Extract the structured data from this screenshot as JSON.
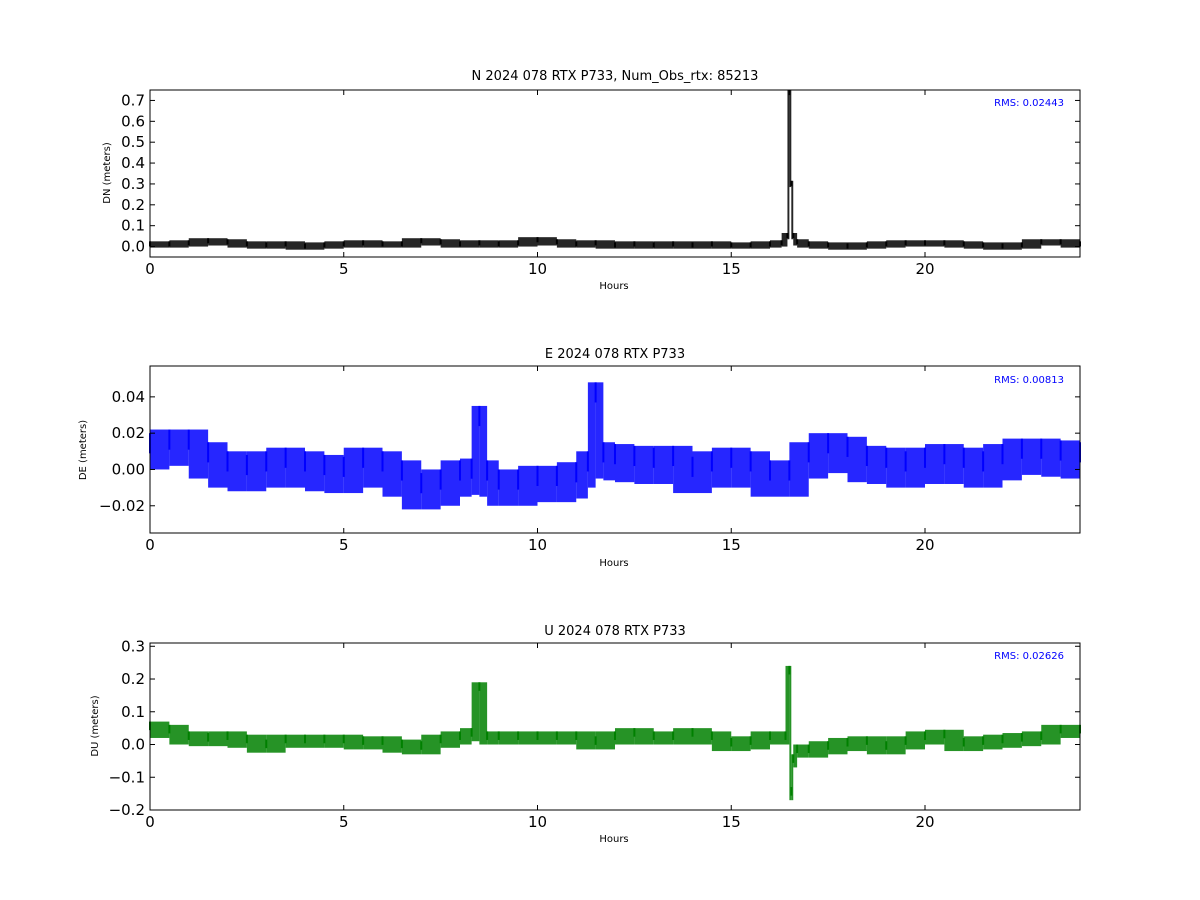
{
  "figure": {
    "background": "#ffffff"
  },
  "chart_data": [
    {
      "type": "scatter",
      "title": "N 2024 078 RTX  P733, Num_Obs_rtx: 85213",
      "xlabel": "Hours",
      "ylabel": "DN (meters)",
      "xlim": [
        0,
        24
      ],
      "ylim": [
        -0.05,
        0.75
      ],
      "xticks": [
        0,
        5,
        10,
        15,
        20
      ],
      "xtick_labels": [
        "0",
        "5",
        "10",
        "15",
        "20"
      ],
      "yticks": [
        0.0,
        0.1,
        0.2,
        0.3,
        0.4,
        0.5,
        0.6,
        0.7
      ],
      "ytick_labels": [
        "0.0",
        "0.1",
        "0.2",
        "0.3",
        "0.4",
        "0.5",
        "0.6",
        "0.7"
      ],
      "annotation": "RMS:  0.02443",
      "color": "#000000",
      "annotation_color": "#0000ff",
      "series": [
        {
          "x": [
            0,
            0.5,
            1,
            1.5,
            2,
            2.5,
            3,
            3.5,
            4,
            4.5,
            5,
            5.5,
            6,
            6.5,
            7,
            7.5,
            8,
            8.5,
            9,
            9.5,
            10,
            10.5,
            11,
            11.5,
            12,
            12.5,
            13,
            13.5,
            14,
            14.5,
            15,
            15.5,
            16,
            16.3,
            16.45,
            16.5,
            16.55,
            16.6,
            16.7,
            17,
            17.5,
            18,
            18.5,
            19,
            19.5,
            20,
            20.5,
            21,
            21.5,
            22,
            22.5,
            23,
            23.5,
            24
          ],
          "y": [
            0.01,
            0.01,
            0.015,
            0.025,
            0.02,
            0.01,
            0.005,
            0.01,
            0.0,
            0.005,
            0.01,
            0.015,
            0.01,
            0.01,
            0.025,
            0.02,
            0.01,
            0.015,
            0.01,
            0.015,
            0.03,
            0.02,
            0.01,
            0.015,
            0.005,
            0.01,
            0.005,
            0.01,
            0.005,
            0.01,
            0.005,
            0.005,
            0.01,
            0.015,
            0.05,
            0.74,
            0.3,
            0.05,
            0.02,
            0.01,
            0.005,
            0.0,
            0.005,
            0.01,
            0.015,
            0.015,
            0.015,
            0.01,
            0.005,
            0.0,
            0.005,
            0.02,
            0.02,
            0.01
          ],
          "spread": 0.015
        }
      ]
    },
    {
      "type": "scatter",
      "title": "E 2024 078 RTX  P733",
      "xlabel": "Hours",
      "ylabel": "DE (meters)",
      "xlim": [
        0,
        24
      ],
      "ylim": [
        -0.035,
        0.057
      ],
      "xticks": [
        0,
        5,
        10,
        15,
        20
      ],
      "xtick_labels": [
        "0",
        "5",
        "10",
        "15",
        "20"
      ],
      "yticks": [
        -0.02,
        0.0,
        0.02,
        0.04
      ],
      "ytick_labels": [
        "−0.02",
        "0.00",
        "0.02",
        "0.04"
      ],
      "annotation": "RMS:  0.00813",
      "color": "#0000ff",
      "annotation_color": "#0000ff",
      "series": [
        {
          "x": [
            0,
            0.5,
            1,
            1.5,
            2,
            2.5,
            3,
            3.5,
            4,
            4.5,
            5,
            5.5,
            6,
            6.5,
            7,
            7.5,
            8,
            8.3,
            8.5,
            8.7,
            9,
            9.5,
            10,
            10.5,
            11,
            11.3,
            11.5,
            11.7,
            12,
            12.5,
            13,
            13.5,
            14,
            14.5,
            15,
            15.5,
            16,
            16.5,
            17,
            17.5,
            18,
            18.5,
            19,
            19.5,
            20,
            20.5,
            21,
            21.5,
            22,
            22.5,
            23,
            23.5,
            24
          ],
          "y": [
            0.01,
            0.012,
            0.012,
            0.005,
            0.0,
            -0.002,
            0.0,
            0.002,
            0.0,
            -0.002,
            -0.003,
            0.002,
            0.0,
            -0.005,
            -0.012,
            -0.01,
            -0.005,
            -0.004,
            0.025,
            -0.005,
            -0.01,
            -0.01,
            -0.008,
            -0.008,
            -0.006,
            0.0,
            0.038,
            0.005,
            0.004,
            0.003,
            0.002,
            0.003,
            -0.003,
            0.0,
            0.002,
            0.0,
            -0.005,
            -0.005,
            0.005,
            0.01,
            0.008,
            0.003,
            0.002,
            0.0,
            0.002,
            0.004,
            0.002,
            0.0,
            0.004,
            0.007,
            0.007,
            0.006,
            0.005
          ],
          "spread": 0.01
        }
      ]
    },
    {
      "type": "scatter",
      "title": "U 2024 078 RTX  P733",
      "xlabel": "Hours",
      "ylabel": "DU (meters)",
      "xlim": [
        0,
        24
      ],
      "ylim": [
        -0.2,
        0.31
      ],
      "xticks": [
        0,
        5,
        10,
        15,
        20
      ],
      "xtick_labels": [
        "0",
        "5",
        "10",
        "15",
        "20"
      ],
      "yticks": [
        -0.2,
        -0.1,
        0.0,
        0.1,
        0.2,
        0.3
      ],
      "ytick_labels": [
        "−0.2",
        "−0.1",
        "0.0",
        "0.1",
        "0.2",
        "0.3"
      ],
      "annotation": "RMS:  0.02626",
      "color": "#008000",
      "annotation_color": "#0000ff",
      "series": [
        {
          "x": [
            0,
            0.5,
            1,
            1.5,
            2,
            2.5,
            3,
            3.5,
            4,
            4.5,
            5,
            5.5,
            6,
            6.5,
            7,
            7.5,
            8,
            8.3,
            8.5,
            8.7,
            9,
            9.5,
            10,
            10.5,
            11,
            11.5,
            12,
            12.5,
            13,
            13.5,
            14,
            14.5,
            15,
            15.5,
            16,
            16.4,
            16.5,
            16.55,
            16.6,
            16.7,
            17,
            17.5,
            18,
            18.5,
            19,
            19.5,
            20,
            20.5,
            21,
            21.5,
            22,
            22.5,
            23,
            23.5,
            24
          ],
          "y": [
            0.05,
            0.04,
            0.02,
            0.015,
            0.02,
            0.01,
            -0.005,
            0.01,
            0.01,
            0.01,
            0.01,
            0.005,
            0.005,
            -0.005,
            -0.01,
            0.01,
            0.02,
            0.03,
            0.17,
            0.02,
            0.02,
            0.02,
            0.02,
            0.02,
            0.02,
            0.005,
            0.02,
            0.03,
            0.02,
            0.02,
            0.03,
            0.02,
            0.0,
            0.005,
            0.02,
            0.02,
            0.22,
            -0.15,
            -0.05,
            -0.02,
            -0.02,
            -0.01,
            0.0,
            0.005,
            -0.01,
            0.005,
            0.02,
            0.025,
            0.0,
            0.005,
            0.01,
            0.015,
            0.02,
            0.04,
            0.04
          ],
          "spread": 0.02
        }
      ]
    }
  ]
}
